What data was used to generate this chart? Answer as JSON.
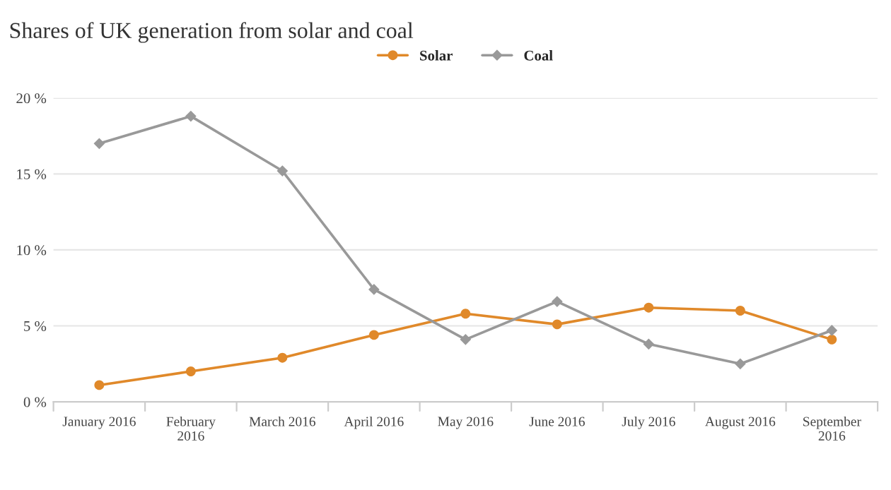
{
  "chart_data": {
    "type": "line",
    "title": "Shares of UK generation from solar and coal",
    "categories": [
      "January 2016",
      "February 2016",
      "March 2016",
      "April 2016",
      "May 2016",
      "June 2016",
      "July 2016",
      "August 2016",
      "September 2016"
    ],
    "series": [
      {
        "name": "Solar",
        "color": "#e0892a",
        "marker": "circle",
        "values": [
          1.1,
          2.0,
          2.9,
          4.4,
          5.8,
          5.1,
          6.2,
          6.0,
          4.1
        ]
      },
      {
        "name": "Coal",
        "color": "#999999",
        "marker": "diamond",
        "values": [
          17.0,
          18.8,
          15.2,
          7.4,
          4.1,
          6.6,
          3.8,
          2.5,
          4.7
        ]
      }
    ],
    "ylim": [
      0,
      20
    ],
    "yticks": [
      {
        "value": 0,
        "label": "0 %"
      },
      {
        "value": 5,
        "label": "5 %"
      },
      {
        "value": 10,
        "label": "10 %"
      },
      {
        "value": 15,
        "label": "15 %"
      },
      {
        "value": 20,
        "label": "20 %"
      }
    ],
    "grid": "y",
    "legend": "top",
    "line_style": "solid"
  }
}
